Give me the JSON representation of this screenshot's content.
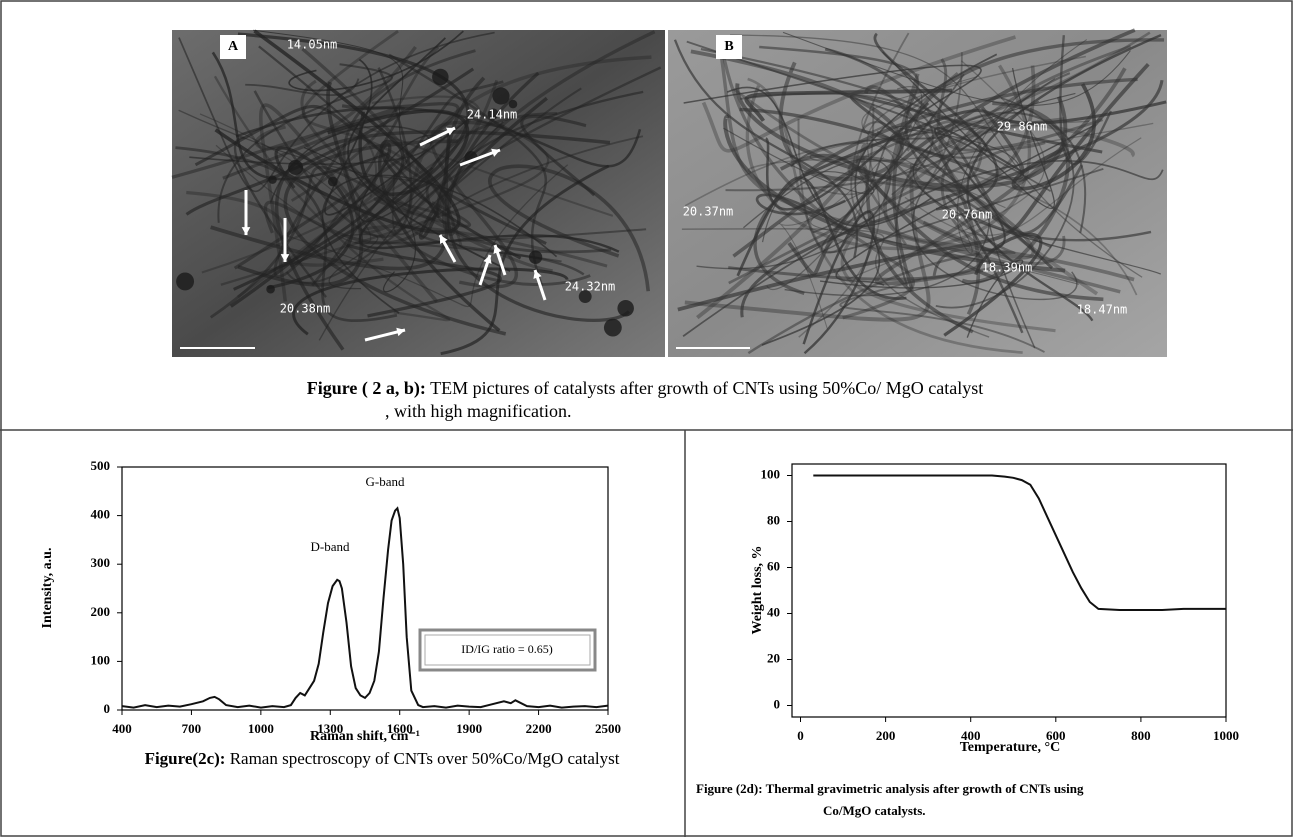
{
  "figure_ab": {
    "panels": [
      {
        "label": "A",
        "annotations": [
          "14.05nm",
          "24.14nm",
          "20.38nm",
          "24.32nm"
        ]
      },
      {
        "label": "B",
        "annotations": [
          "29.86nm",
          "20.37nm",
          "20.76nm",
          "18.39nm",
          "18.47nm"
        ]
      }
    ],
    "caption": {
      "label": "Figure ( 2 a, b):",
      "text": " TEM pictures of catalysts after growth of CNTs using 50%Co/ MgO catalyst",
      "text_line2": ", with high magnification."
    }
  },
  "chart_data": [
    {
      "type": "line",
      "x_label": "Raman shift, cm⁻¹",
      "y_label": "Intensity, a.u.",
      "x": [
        400,
        450,
        500,
        550,
        600,
        650,
        700,
        750,
        780,
        800,
        820,
        850,
        900,
        950,
        1000,
        1050,
        1100,
        1130,
        1150,
        1170,
        1190,
        1210,
        1230,
        1250,
        1270,
        1290,
        1310,
        1330,
        1340,
        1350,
        1370,
        1390,
        1410,
        1430,
        1450,
        1470,
        1490,
        1510,
        1530,
        1550,
        1565,
        1580,
        1590,
        1600,
        1615,
        1630,
        1650,
        1680,
        1700,
        1750,
        1800,
        1850,
        1900,
        1950,
        2000,
        2050,
        2080,
        2100,
        2150,
        2200,
        2250,
        2300,
        2350,
        2400,
        2450,
        2500
      ],
      "values": [
        8,
        5,
        10,
        6,
        9,
        7,
        12,
        18,
        25,
        27,
        22,
        10,
        6,
        9,
        5,
        8,
        6,
        10,
        25,
        35,
        30,
        45,
        60,
        95,
        160,
        220,
        255,
        268,
        265,
        250,
        180,
        90,
        45,
        30,
        25,
        35,
        60,
        120,
        230,
        330,
        390,
        410,
        415,
        395,
        300,
        150,
        40,
        10,
        6,
        8,
        5,
        9,
        7,
        6,
        12,
        18,
        14,
        20,
        8,
        6,
        9,
        5,
        7,
        8,
        6,
        9
      ],
      "color": "#111111",
      "xlim": [
        400,
        2500
      ],
      "xticks": [
        400,
        700,
        1000,
        1300,
        1600,
        1900,
        2200,
        2500
      ],
      "ylim": [
        0,
        500
      ],
      "yticks": [
        0,
        100,
        200,
        300,
        400,
        500
      ],
      "annotations": [
        "D-band",
        "G-band",
        "ID/IG ratio = 0.65)"
      ],
      "caption": {
        "label": "Figure(2c):",
        "text": " Raman spectroscopy of CNTs over 50%Co/MgO catalyst"
      }
    },
    {
      "type": "line",
      "x_label": "Temperature, °C",
      "y_label": "Weight loss, %",
      "x": [
        30,
        100,
        200,
        300,
        400,
        450,
        480,
        500,
        520,
        540,
        560,
        580,
        600,
        620,
        640,
        660,
        680,
        700,
        750,
        800,
        850,
        900,
        950,
        1000
      ],
      "values": [
        100,
        100,
        100,
        100,
        100,
        100,
        99.5,
        99,
        98,
        96,
        90,
        82,
        74,
        66,
        58,
        51,
        45,
        42,
        41.5,
        41.5,
        41.5,
        42,
        42,
        42
      ],
      "color": "#111111",
      "xlim": [
        -20,
        1000
      ],
      "xticks": [
        0,
        200,
        400,
        600,
        800,
        1000
      ],
      "ylim": [
        -5,
        105
      ],
      "yticks": [
        0,
        20,
        40,
        60,
        80,
        100
      ],
      "caption": {
        "label": "Figure (2d):",
        "text": " Thermal gravimetric analysis after growth of CNTs using",
        "text_line2": "Co/MgO catalysts."
      }
    }
  ]
}
